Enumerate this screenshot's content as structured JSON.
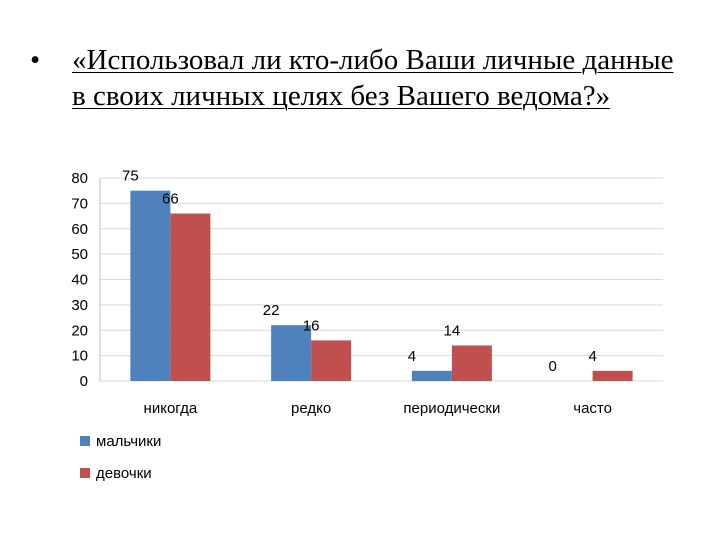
{
  "slide": {
    "bullet": "•",
    "title": "«Использовал ли кто-либо Ваши личные данные в своих личных целях без Вашего ведома?»"
  },
  "chart_data": {
    "type": "bar",
    "categories": [
      "никогда",
      "редко",
      "периодически",
      "часто"
    ],
    "series": [
      {
        "name": "мальчики",
        "values": [
          75,
          22,
          4,
          0
        ],
        "color": "#4f81bd"
      },
      {
        "name": "девочки",
        "values": [
          66,
          16,
          14,
          4
        ],
        "color": "#c0504d"
      }
    ],
    "yticks": [
      0,
      10,
      20,
      30,
      40,
      50,
      60,
      70,
      80
    ],
    "ylim": [
      0,
      80
    ],
    "grid": true,
    "legend_position": "bottom-left"
  }
}
